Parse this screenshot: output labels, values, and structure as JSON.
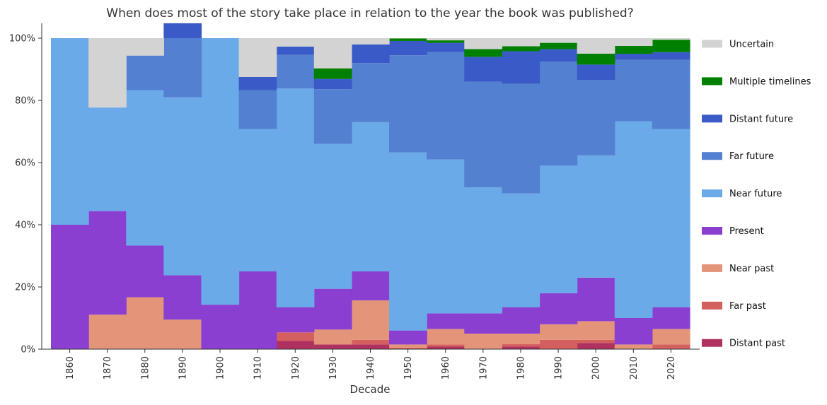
{
  "chart_data": {
    "type": "area",
    "stacked": true,
    "normalized": true,
    "title": "When does most of the story take place in relation to the year the book was published?",
    "xlabel": "Decade",
    "ylabel": "",
    "categories": [
      "1860",
      "1870",
      "1880",
      "1890",
      "1900",
      "1910",
      "1920",
      "1930",
      "1940",
      "1950",
      "1960",
      "1970",
      "1980",
      "1990",
      "2000",
      "2010",
      "2020"
    ],
    "ylim": [
      0,
      100
    ],
    "yticks": [
      "0%",
      "20%",
      "40%",
      "60%",
      "80%",
      "100%"
    ],
    "legend_position": "right",
    "series": [
      {
        "name": "Distant past",
        "color": "#b03060",
        "values": [
          0,
          0,
          0,
          0,
          0,
          0,
          2.7,
          1.5,
          1.5,
          0,
          0.8,
          0,
          0.8,
          0,
          2,
          0,
          0
        ]
      },
      {
        "name": "Far past",
        "color": "#d45f5f",
        "values": [
          0,
          0,
          0,
          0,
          0,
          0,
          2.7,
          0,
          1.5,
          0.5,
          0.7,
          0,
          0.8,
          3,
          1,
          0,
          1.5
        ]
      },
      {
        "name": "Near past",
        "color": "#e39479",
        "values": [
          0,
          11.1,
          16.7,
          9.5,
          0,
          0,
          0,
          4.8,
          12.7,
          1,
          5,
          5,
          3.4,
          5,
          6,
          1.5,
          5
        ]
      },
      {
        "name": "Present",
        "color": "#8a3fd1",
        "values": [
          40,
          33.3,
          16.6,
          14.3,
          14.3,
          25,
          8.1,
          13.1,
          9.3,
          4.5,
          5,
          6.5,
          8.5,
          10,
          14,
          8.5,
          7
        ]
      },
      {
        "name": "Near future",
        "color": "#6aaae8",
        "values": [
          60,
          33.3,
          50,
          57.2,
          85.7,
          45.8,
          70.3,
          46.6,
          48,
          57.3,
          49.5,
          40.5,
          36.6,
          41,
          39.3,
          63.3,
          57.3
        ]
      },
      {
        "name": "Far future",
        "color": "#5380d0",
        "values": [
          0,
          0,
          11.1,
          19,
          0,
          12.5,
          10.8,
          17.6,
          19,
          31.2,
          34.5,
          34,
          35.2,
          33.5,
          24.2,
          19.7,
          22.2
        ]
      },
      {
        "name": "Distant future",
        "color": "#3a5bc7",
        "values": [
          0,
          0,
          0,
          4.8,
          0,
          4.2,
          2.7,
          3.3,
          6,
          4.6,
          3,
          8,
          10.5,
          4,
          5,
          2,
          2.5
        ]
      },
      {
        "name": "Multiple timelines",
        "color": "#008000",
        "values": [
          0,
          0,
          0,
          0,
          0,
          0,
          0,
          3.4,
          0,
          0.8,
          0.8,
          2.5,
          1.6,
          2,
          3.5,
          2.5,
          4
        ]
      },
      {
        "name": "Uncertain",
        "color": "#d3d3d3",
        "values": [
          0,
          22.3,
          5.6,
          0,
          0,
          12.5,
          2.7,
          9.7,
          2,
          0.1,
          0.7,
          3.5,
          2.6,
          1.5,
          5,
          2.5,
          0.5
        ]
      }
    ]
  }
}
